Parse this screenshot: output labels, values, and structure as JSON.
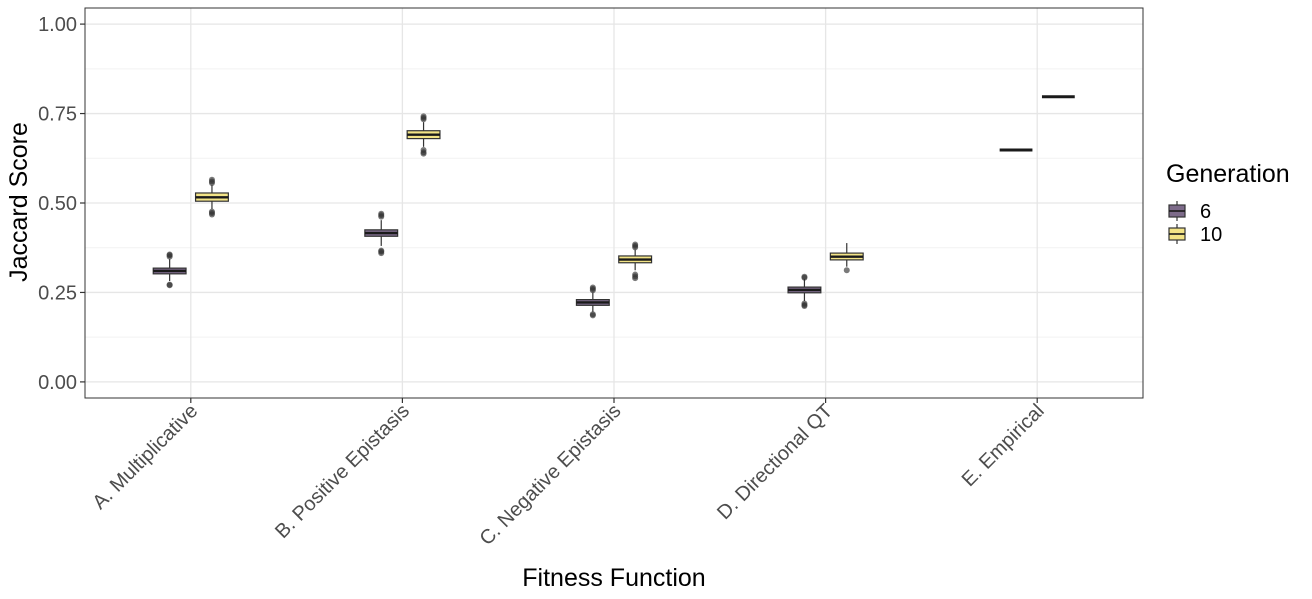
{
  "chart_data": {
    "type": "box",
    "xlabel": "Fitness Function",
    "ylabel": "Jaccard Score",
    "ylim": [
      -0.045,
      1.045
    ],
    "yticks": [
      0.0,
      0.25,
      0.5,
      0.75,
      1.0
    ],
    "ytick_labels": [
      "0.00",
      "0.25",
      "0.50",
      "0.75",
      "1.00"
    ],
    "categories": [
      "A. Multiplicative",
      "B. Positive Epistasis",
      "C. Negative Epistasis",
      "D. Directional QT",
      "E. Empirical"
    ],
    "grid": true,
    "legend": {
      "title": "Generation",
      "position": "right",
      "entries": [
        {
          "label": "6",
          "color": "#7d6b8a"
        },
        {
          "label": "10",
          "color": "#f3e486"
        }
      ]
    },
    "series": [
      {
        "name": "6",
        "color": "#7d6b8a",
        "boxes": [
          {
            "q1": 0.302,
            "median": 0.31,
            "q3": 0.318,
            "whisker_low": 0.282,
            "whisker_high": 0.343,
            "outliers": [
              0.27,
              0.272,
              0.35,
              0.354,
              0.356
            ]
          },
          {
            "q1": 0.407,
            "median": 0.416,
            "q3": 0.425,
            "whisker_low": 0.38,
            "whisker_high": 0.452,
            "outliers": [
              0.36,
              0.364,
              0.367,
              0.462,
              0.466,
              0.47
            ]
          },
          {
            "q1": 0.214,
            "median": 0.222,
            "q3": 0.23,
            "whisker_low": 0.196,
            "whisker_high": 0.25,
            "outliers": [
              0.186,
              0.189,
              0.256,
              0.26,
              0.264
            ]
          },
          {
            "q1": 0.249,
            "median": 0.257,
            "q3": 0.265,
            "whisker_low": 0.226,
            "whisker_high": 0.288,
            "outliers": [
              0.212,
              0.215,
              0.219,
              0.291,
              0.294
            ]
          },
          {
            "q1": 0.648,
            "median": 0.648,
            "q3": 0.648,
            "whisker_low": 0.648,
            "whisker_high": 0.648,
            "outliers": []
          }
        ]
      },
      {
        "name": "10",
        "color": "#f3e486",
        "boxes": [
          {
            "q1": 0.505,
            "median": 0.516,
            "q3": 0.528,
            "whisker_low": 0.483,
            "whisker_high": 0.55,
            "outliers": [
              0.468,
              0.472,
              0.476,
              0.556,
              0.56,
              0.565
            ]
          },
          {
            "q1": 0.68,
            "median": 0.691,
            "q3": 0.702,
            "whisker_low": 0.657,
            "whisker_high": 0.726,
            "outliers": [
              0.638,
              0.642,
              0.648,
              0.734,
              0.738,
              0.742
            ]
          },
          {
            "q1": 0.333,
            "median": 0.342,
            "q3": 0.352,
            "whisker_low": 0.312,
            "whisker_high": 0.37,
            "outliers": [
              0.29,
              0.295,
              0.3,
              0.376,
              0.38,
              0.384
            ]
          },
          {
            "q1": 0.341,
            "median": 0.35,
            "q3": 0.36,
            "whisker_low": 0.322,
            "whisker_high": 0.388,
            "outliers": [
              0.312
            ]
          },
          {
            "q1": 0.797,
            "median": 0.797,
            "q3": 0.797,
            "whisker_low": 0.797,
            "whisker_high": 0.797,
            "outliers": []
          }
        ]
      }
    ]
  }
}
